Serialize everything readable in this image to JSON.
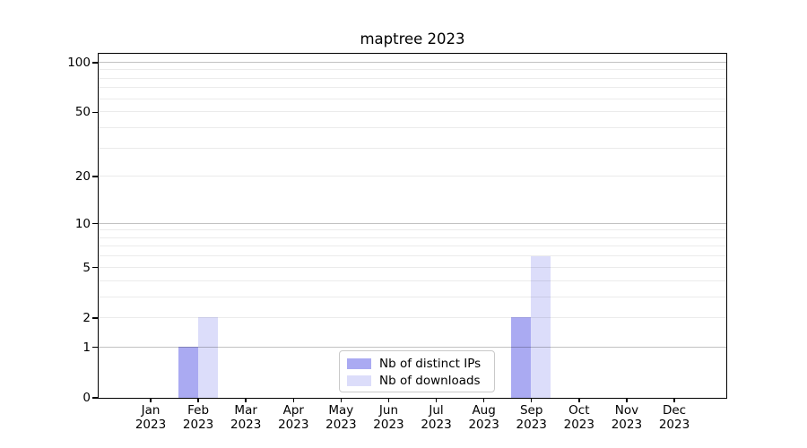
{
  "chart_data": {
    "type": "bar",
    "title": "maptree 2023",
    "categories": [
      "Jan",
      "Feb",
      "Mar",
      "Apr",
      "May",
      "Jun",
      "Jul",
      "Aug",
      "Sep",
      "Oct",
      "Nov",
      "Dec"
    ],
    "category_year_line": "2023",
    "series": [
      {
        "name": "Nb of distinct IPs",
        "color": "#aaaaf2",
        "values": [
          0,
          1,
          0,
          0,
          0,
          0,
          0,
          0,
          2,
          0,
          0,
          0
        ]
      },
      {
        "name": "Nb of downloads",
        "color": "#dcddfa",
        "values": [
          0,
          2,
          0,
          0,
          0,
          0,
          0,
          0,
          6,
          0,
          0,
          0
        ]
      }
    ],
    "xlabel": "",
    "ylabel": "",
    "yscale": "log1p",
    "ylim": [
      0,
      113
    ],
    "y_labeled_ticks": [
      0,
      1,
      2,
      5,
      10,
      20,
      50,
      100
    ],
    "y_minor_gridlines": [
      3,
      4,
      6,
      7,
      8,
      9,
      30,
      40,
      60,
      70,
      80,
      90
    ],
    "y_decade_gridlines": [
      1,
      10,
      100
    ],
    "grid": "horizontal",
    "legend_position": "lower center",
    "colors": {
      "spine": "#000000",
      "major_grid": "rgba(0,0,0,0.24)",
      "minor_grid": "rgba(0,0,0,0.08)",
      "background": "#ffffff"
    }
  }
}
